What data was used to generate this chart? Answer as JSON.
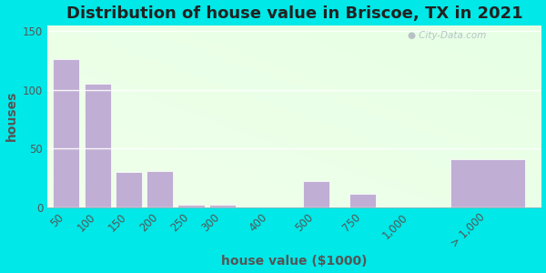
{
  "title": "Distribution of house value in Briscoe, TX in 2021",
  "xlabel": "house value ($1000)",
  "ylabel": "houses",
  "bar_labels": [
    "50",
    "100",
    "150",
    "200",
    "250",
    "300",
    "400",
    "500",
    "750",
    "1,000",
    "> 1,000"
  ],
  "bar_values": [
    126,
    105,
    30,
    31,
    2,
    2,
    0,
    22,
    11,
    0,
    41
  ],
  "bar_color": "#c0aed4",
  "bg_outer": "#00e8e8",
  "bg_plot_top": "#e8ffe8",
  "bg_plot_bottom": "#f0ffe8",
  "ylim": [
    0,
    155
  ],
  "yticks": [
    0,
    50,
    100,
    150
  ],
  "title_fontsize": 13,
  "axis_label_fontsize": 10,
  "tick_fontsize": 8.5,
  "x_positions": [
    0,
    1,
    2,
    3,
    4,
    5,
    6.5,
    8,
    9.5,
    11,
    13.5
  ],
  "bar_widths": [
    0.85,
    0.85,
    0.85,
    0.85,
    0.85,
    0.85,
    0.85,
    0.85,
    0.85,
    0.85,
    2.4
  ]
}
